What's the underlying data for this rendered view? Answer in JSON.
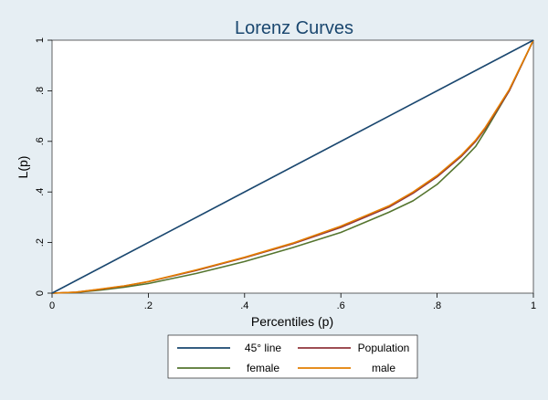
{
  "chart_data": {
    "type": "line",
    "title": "Lorenz Curves",
    "xlabel": "Percentiles (p)",
    "ylabel": "L(p)",
    "xlim": [
      0,
      1
    ],
    "ylim": [
      0,
      1
    ],
    "xticks": [
      {
        "value": 0,
        "label": "0"
      },
      {
        "value": 0.2,
        "label": ".2"
      },
      {
        "value": 0.4,
        "label": ".4"
      },
      {
        "value": 0.6,
        "label": ".6"
      },
      {
        "value": 0.8,
        "label": ".8"
      },
      {
        "value": 1,
        "label": "1"
      }
    ],
    "yticks": [
      {
        "value": 0,
        "label": "0"
      },
      {
        "value": 0.2,
        "label": ".2"
      },
      {
        "value": 0.4,
        "label": ".4"
      },
      {
        "value": 0.6,
        "label": ".6"
      },
      {
        "value": 0.8,
        "label": ".8"
      },
      {
        "value": 1,
        "label": "1"
      }
    ],
    "grid": false,
    "legend_position": "bottom",
    "series": [
      {
        "name": "45° line",
        "color": "#1a476f",
        "x": [
          0,
          1
        ],
        "y": [
          0,
          1
        ]
      },
      {
        "name": "Population",
        "color": "#90353b",
        "x": [
          0,
          0.05,
          0.1,
          0.15,
          0.2,
          0.3,
          0.4,
          0.5,
          0.6,
          0.7,
          0.75,
          0.8,
          0.85,
          0.88,
          0.9,
          0.95,
          1.0
        ],
        "y": [
          0,
          0.004,
          0.015,
          0.028,
          0.045,
          0.09,
          0.14,
          0.195,
          0.26,
          0.34,
          0.395,
          0.46,
          0.54,
          0.6,
          0.65,
          0.8,
          1.0
        ]
      },
      {
        "name": "female",
        "color": "#55752f",
        "x": [
          0,
          0.05,
          0.1,
          0.15,
          0.2,
          0.3,
          0.4,
          0.5,
          0.6,
          0.7,
          0.75,
          0.8,
          0.85,
          0.88,
          0.9,
          0.95,
          1.0
        ],
        "y": [
          0,
          0.003,
          0.012,
          0.024,
          0.038,
          0.078,
          0.125,
          0.18,
          0.24,
          0.32,
          0.365,
          0.43,
          0.52,
          0.58,
          0.64,
          0.8,
          1.0
        ]
      },
      {
        "name": "male",
        "color": "#e37e00",
        "x": [
          0,
          0.05,
          0.1,
          0.15,
          0.2,
          0.3,
          0.4,
          0.5,
          0.6,
          0.7,
          0.75,
          0.8,
          0.85,
          0.88,
          0.9,
          0.95,
          1.0
        ],
        "y": [
          0,
          0.004,
          0.016,
          0.029,
          0.046,
          0.092,
          0.142,
          0.198,
          0.265,
          0.345,
          0.4,
          0.465,
          0.545,
          0.605,
          0.655,
          0.805,
          1.0
        ]
      }
    ]
  }
}
